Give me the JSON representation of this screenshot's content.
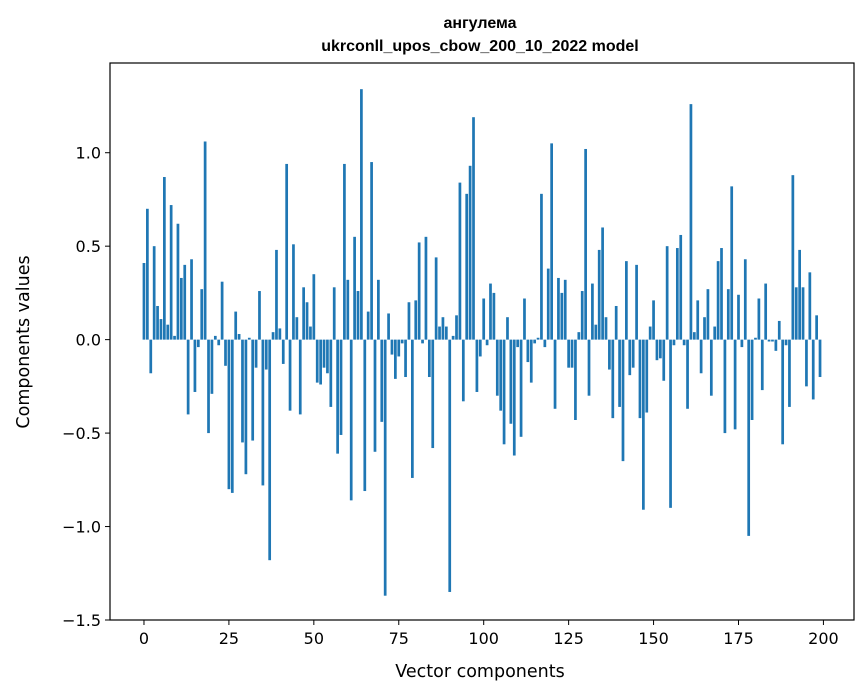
{
  "chart_data": {
    "type": "bar",
    "title": [
      "ангулема",
      "ukrconll_upos_cbow_200_10_2022 model"
    ],
    "xlabel": "Vector components",
    "ylabel": "Components values",
    "xlim": [
      -10,
      209
    ],
    "ylim": [
      -1.5,
      1.48
    ],
    "xticks": [
      0,
      25,
      50,
      75,
      100,
      125,
      150,
      175,
      200
    ],
    "yticks": [
      -1.5,
      -1.0,
      -0.5,
      0.0,
      0.5,
      1.0
    ],
    "ytick_labels": [
      "−1.5",
      "−1.0",
      "−0.5",
      "0.0",
      "0.5",
      "1.0"
    ],
    "xtick_labels": [
      "0",
      "25",
      "50",
      "75",
      "100",
      "125",
      "150",
      "175",
      "200"
    ],
    "bar_color": "#1f77b4",
    "grid": false,
    "x": [
      0,
      1,
      2,
      3,
      4,
      5,
      6,
      7,
      8,
      9,
      10,
      11,
      12,
      13,
      14,
      15,
      16,
      17,
      18,
      19,
      20,
      21,
      22,
      23,
      24,
      25,
      26,
      27,
      28,
      29,
      30,
      31,
      32,
      33,
      34,
      35,
      36,
      37,
      38,
      39,
      40,
      41,
      42,
      43,
      44,
      45,
      46,
      47,
      48,
      49,
      50,
      51,
      52,
      53,
      54,
      55,
      56,
      57,
      58,
      59,
      60,
      61,
      62,
      63,
      64,
      65,
      66,
      67,
      68,
      69,
      70,
      71,
      72,
      73,
      74,
      75,
      76,
      77,
      78,
      79,
      80,
      81,
      82,
      83,
      84,
      85,
      86,
      87,
      88,
      89,
      90,
      91,
      92,
      93,
      94,
      95,
      96,
      97,
      98,
      99,
      100,
      101,
      102,
      103,
      104,
      105,
      106,
      107,
      108,
      109,
      110,
      111,
      112,
      113,
      114,
      115,
      116,
      117,
      118,
      119,
      120,
      121,
      122,
      123,
      124,
      125,
      126,
      127,
      128,
      129,
      130,
      131,
      132,
      133,
      134,
      135,
      136,
      137,
      138,
      139,
      140,
      141,
      142,
      143,
      144,
      145,
      146,
      147,
      148,
      149,
      150,
      151,
      152,
      153,
      154,
      155,
      156,
      157,
      158,
      159,
      160,
      161,
      162,
      163,
      164,
      165,
      166,
      167,
      168,
      169,
      170,
      171,
      172,
      173,
      174,
      175,
      176,
      177,
      178,
      179,
      180,
      181,
      182,
      183,
      184,
      185,
      186,
      187,
      188,
      189,
      190,
      191,
      192,
      193,
      194,
      195,
      196,
      197,
      198,
      199
    ],
    "values": [
      0.41,
      0.7,
      -0.18,
      0.5,
      0.18,
      0.11,
      0.87,
      0.08,
      0.72,
      0.02,
      0.62,
      0.33,
      0.4,
      -0.4,
      0.43,
      -0.28,
      -0.04,
      0.27,
      1.06,
      -0.5,
      -0.29,
      0.02,
      -0.03,
      0.31,
      -0.14,
      -0.8,
      -0.82,
      0.15,
      0.03,
      -0.55,
      -0.72,
      0.01,
      -0.54,
      -0.15,
      0.26,
      -0.78,
      -0.16,
      -1.18,
      0.04,
      0.48,
      0.06,
      -0.13,
      0.94,
      -0.38,
      0.51,
      0.12,
      -0.4,
      0.28,
      0.2,
      0.07,
      0.35,
      -0.23,
      -0.24,
      -0.15,
      -0.18,
      -0.36,
      0.28,
      -0.61,
      -0.51,
      0.94,
      0.32,
      -0.86,
      0.55,
      0.26,
      1.34,
      -0.81,
      0.15,
      0.95,
      -0.6,
      0.32,
      -0.44,
      -1.37,
      0.14,
      -0.08,
      -0.21,
      -0.09,
      -0.02,
      -0.2,
      0.2,
      -0.74,
      0.21,
      0.52,
      -0.02,
      0.55,
      -0.2,
      -0.58,
      0.44,
      0.07,
      0.12,
      0.07,
      -1.35,
      0.02,
      0.13,
      0.84,
      -0.33,
      0.78,
      0.93,
      1.19,
      -0.28,
      -0.09,
      0.22,
      -0.03,
      0.3,
      0.25,
      -0.3,
      -0.38,
      -0.56,
      0.12,
      -0.45,
      -0.62,
      -0.04,
      -0.52,
      0.22,
      -0.12,
      -0.23,
      -0.02,
      0.01,
      0.78,
      -0.04,
      0.38,
      1.05,
      -0.37,
      0.33,
      0.25,
      0.32,
      -0.15,
      -0.15,
      -0.43,
      0.04,
      0.26,
      1.02,
      -0.3,
      0.3,
      0.08,
      0.48,
      0.6,
      0.12,
      -0.16,
      -0.42,
      0.18,
      -0.36,
      -0.65,
      0.42,
      -0.19,
      -0.15,
      0.4,
      -0.42,
      -0.91,
      -0.39,
      0.07,
      0.21,
      -0.11,
      -0.1,
      -0.22,
      0.5,
      -0.9,
      -0.03,
      0.49,
      0.56,
      -0.03,
      -0.37,
      1.26,
      0.04,
      0.21,
      -0.18,
      0.12,
      0.27,
      -0.3,
      0.07,
      0.42,
      0.49,
      -0.5,
      0.27,
      0.82,
      -0.48,
      0.24,
      -0.04,
      0.43,
      -1.05,
      -0.43,
      0.01,
      0.22,
      -0.27,
      0.3,
      -0.01,
      -0.01,
      -0.06,
      0.1,
      -0.56,
      -0.03,
      -0.36,
      0.88,
      0.28,
      0.48,
      0.28,
      -0.25,
      0.36,
      -0.32,
      0.13,
      -0.2
    ]
  }
}
